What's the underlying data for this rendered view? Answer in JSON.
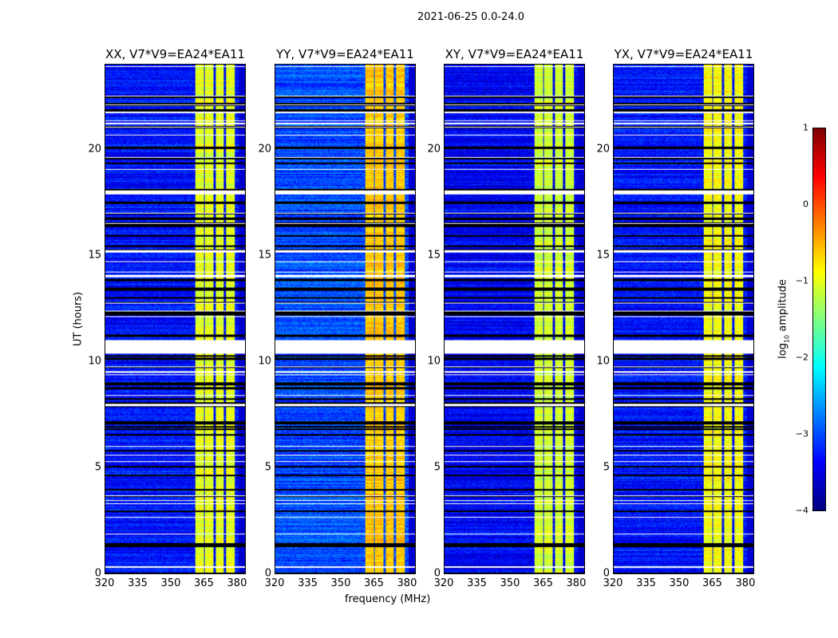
{
  "chart_data": {
    "type": "heatmap",
    "title": "2021-06-25 0.0-24.0",
    "xlabel": "frequency (MHz)",
    "ylabel": "UT (hours)",
    "xlim": [
      320,
      384
    ],
    "ylim": [
      0,
      24
    ],
    "xticks": [
      "320",
      "335",
      "350",
      "365",
      "380"
    ],
    "xtick_values": [
      320,
      335,
      350,
      365,
      380
    ],
    "yticks": [
      "0",
      "5",
      "10",
      "15",
      "20"
    ],
    "ytick_values": [
      0,
      5,
      10,
      15,
      20
    ],
    "panels": [
      {
        "title": "XX, V7*V9=EA24*EA11",
        "background_level": -3.3,
        "band_level": -1.0
      },
      {
        "title": "YY, V7*V9=EA24*EA11",
        "background_level": -3.0,
        "band_level": -0.6
      },
      {
        "title": "XY, V7*V9=EA24*EA11",
        "background_level": -3.4,
        "band_level": -1.1
      },
      {
        "title": "YX, V7*V9=EA24*EA11",
        "background_level": -3.3,
        "band_level": -0.9
      }
    ],
    "bright_channels_mhz": [
      [
        361,
        365
      ],
      [
        365.5,
        369.5
      ],
      [
        370.5,
        374
      ],
      [
        375,
        379
      ]
    ],
    "flagged_hours": [
      [
        10.4,
        11.0
      ],
      [
        17.9,
        18.1
      ],
      [
        0.3,
        0.35
      ],
      [
        14.0,
        14.1
      ]
    ],
    "colorbar": {
      "label": "log10 amplitude",
      "label_main": "log",
      "label_sub": "10",
      "label_rest": " amplitude",
      "range": [
        -4,
        1
      ],
      "ticks": [
        "1",
        "0",
        "−1",
        "−2",
        "−3",
        "−4"
      ],
      "tick_values": [
        1,
        0,
        -1,
        -2,
        -3,
        -4
      ],
      "colormap": "jet"
    }
  }
}
